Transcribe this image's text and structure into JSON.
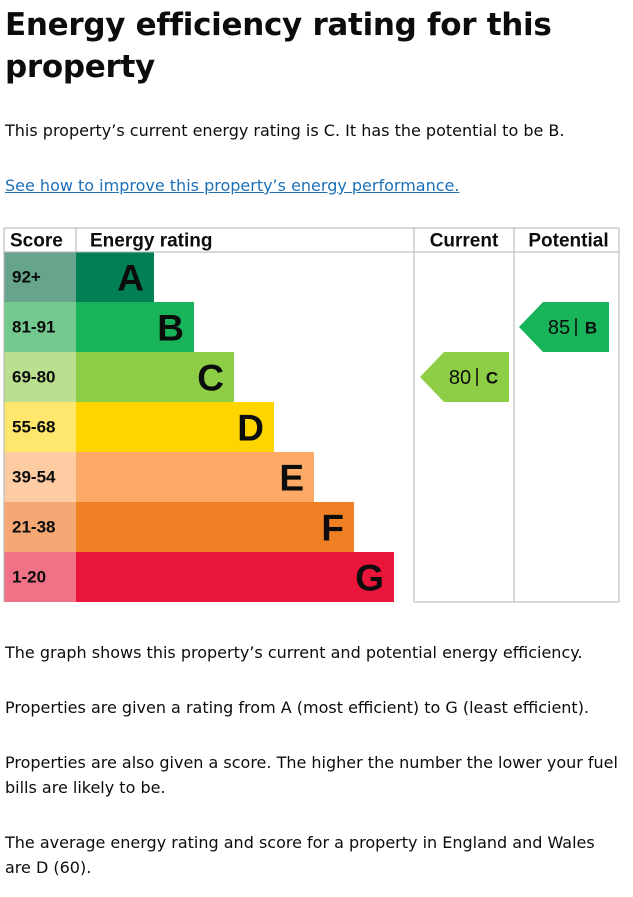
{
  "header": {
    "title": "Energy efficiency rating for this property"
  },
  "intro": "This property’s current energy rating is C. It has the potential to be B.",
  "link": "See how to improve this property’s energy performance.",
  "table": {
    "headers": [
      "Score",
      "Energy rating",
      "Current",
      "Potential"
    ],
    "bands": [
      {
        "score": "92+",
        "letter": "A",
        "color": "#008054",
        "score_color": "#66a58b"
      },
      {
        "score": "81-91",
        "letter": "B",
        "color": "#19b459",
        "score_color": "#74c98f"
      },
      {
        "score": "69-80",
        "letter": "C",
        "color": "#8dce46",
        "score_color": "#badf8f"
      },
      {
        "score": "55-68",
        "letter": "D",
        "color": "#ffd500",
        "score_color": "#ffe66c"
      },
      {
        "score": "39-54",
        "letter": "E",
        "color": "#fcaa65",
        "score_color": "#fdcca3"
      },
      {
        "score": "21-38",
        "letter": "F",
        "color": "#ef8023",
        "score_color": "#f5a874"
      },
      {
        "score": "1-20",
        "letter": "G",
        "color": "#e9153b",
        "score_color": "#f07287"
      }
    ],
    "current": {
      "score": 80,
      "letter": "C",
      "color": "#8dce46"
    },
    "potential": {
      "score": 85,
      "letter": "B",
      "color": "#19b459"
    }
  },
  "paragraphs": [
    "The graph shows this property’s current and potential energy efficiency.",
    "Properties are given a rating from A (most efficient) to G (least efficient).",
    "Properties are also given a score. The higher the number the lower your fuel bills are likely to be.",
    "The average energy rating and score for a property in England and Wales are D (60)."
  ]
}
